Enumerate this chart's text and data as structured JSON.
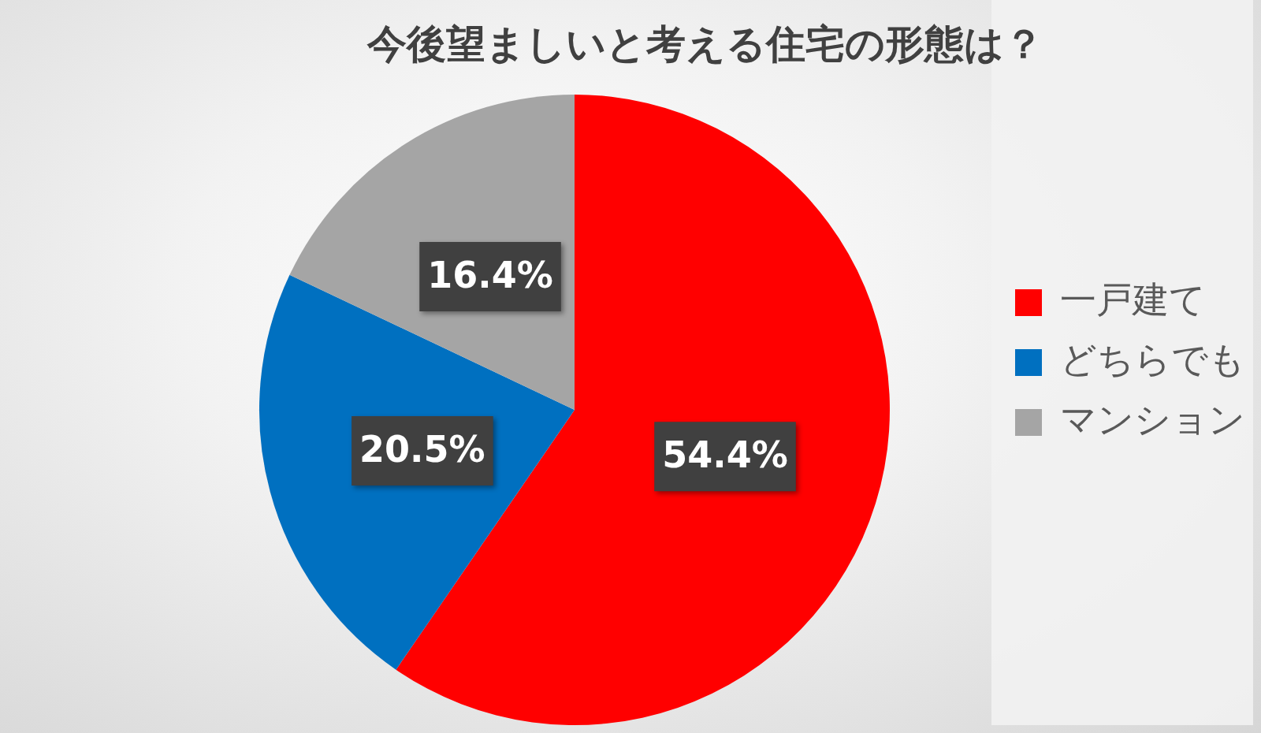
{
  "chart_data": {
    "type": "pie",
    "title": "今後望ましいと考える住宅の形態は？",
    "categories": [
      "一戸建て",
      "どちらでも",
      "マンション"
    ],
    "values": [
      54.4,
      20.5,
      16.4
    ],
    "colors": [
      "#ff0000",
      "#0070c0",
      "#a5a5a5"
    ],
    "value_labels": [
      "54.4%",
      "20.5%",
      "16.4%"
    ],
    "legend": "right"
  }
}
